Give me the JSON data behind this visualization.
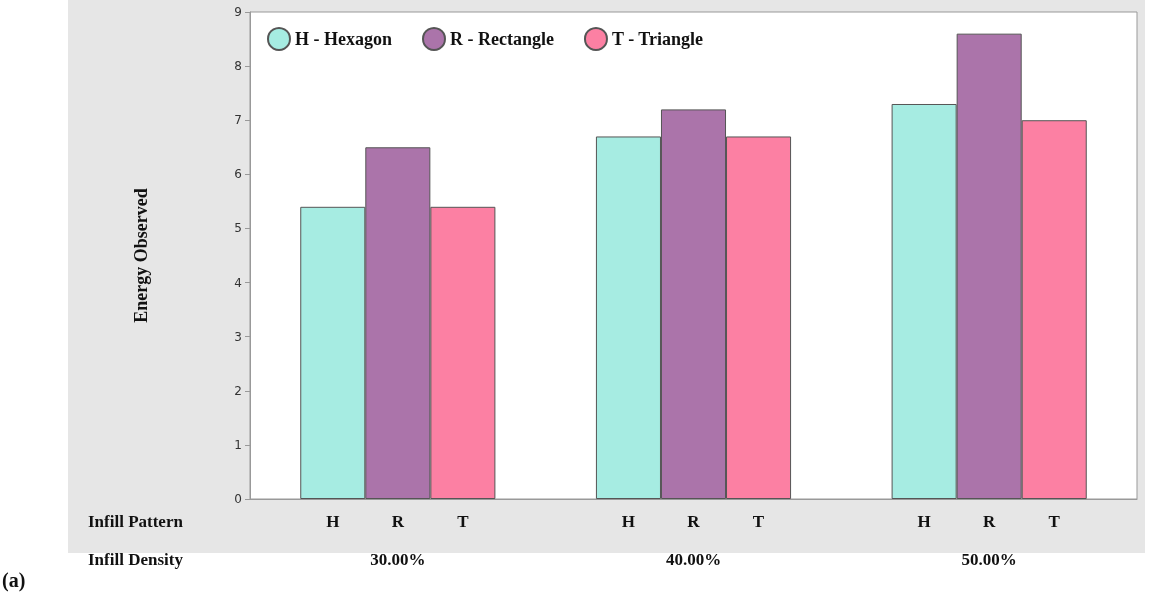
{
  "chart_data": {
    "type": "bar",
    "ylabel": "Energy Observed",
    "xlabel": "Infill Density",
    "categories": [
      "30.00%",
      "40.00%",
      "50.00%"
    ],
    "series": [
      {
        "name": "H - Hexagon",
        "color": "#a6ece2",
        "values": [
          5.4,
          6.7,
          7.3
        ]
      },
      {
        "name": "R - Rectangle",
        "color": "#ab74aa",
        "values": [
          6.5,
          7.2,
          8.6
        ]
      },
      {
        "name": "T - Triangle",
        "color": "#fc80a3",
        "values": [
          5.4,
          6.7,
          7.0
        ]
      }
    ],
    "ylim": [
      0,
      9
    ],
    "yticks": [
      0,
      1,
      2,
      3,
      4,
      5,
      6,
      7,
      8,
      9
    ],
    "grid": false,
    "legend": "top left",
    "annotations": [
      "Infill Pattern",
      "H",
      "R",
      "T",
      "H",
      "R",
      "T",
      "H",
      "R",
      "T",
      "(a)"
    ]
  }
}
